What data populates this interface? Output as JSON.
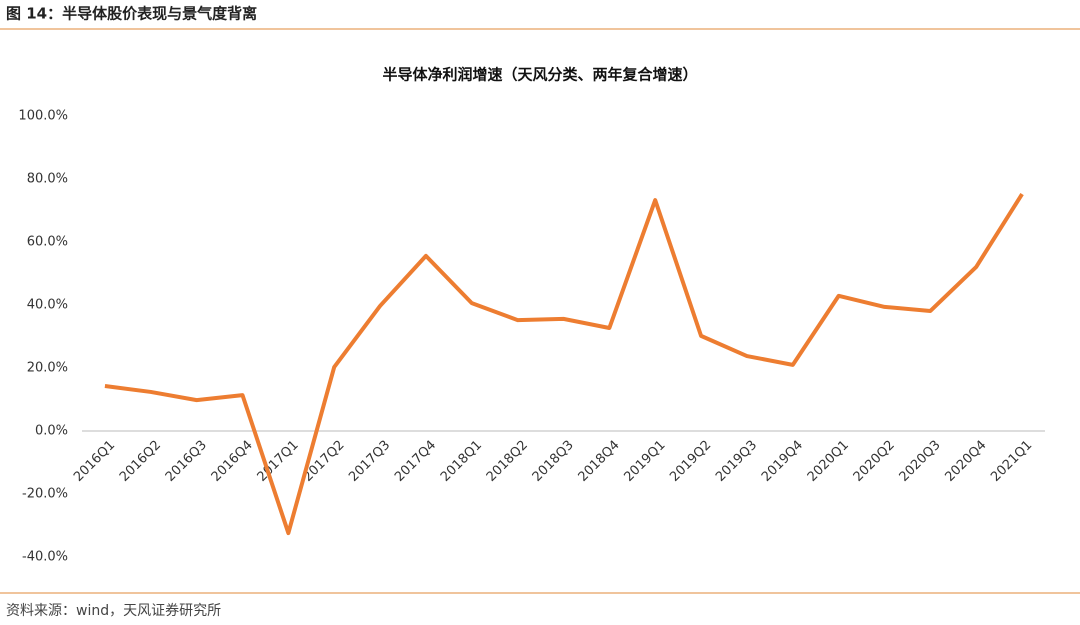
{
  "header": {
    "title": "图 14：半导体股价表现与景气度背离"
  },
  "chart_data": {
    "type": "line",
    "title": "半导体净利润增速（天风分类、两年复合增速）",
    "categories": [
      "2016Q1",
      "2016Q2",
      "2016Q3",
      "2016Q4",
      "2017Q1",
      "2017Q2",
      "2017Q3",
      "2017Q4",
      "2018Q1",
      "2018Q2",
      "2018Q3",
      "2018Q4",
      "2019Q1",
      "2019Q2",
      "2019Q3",
      "2019Q4",
      "2020Q1",
      "2020Q2",
      "2020Q3",
      "2020Q4",
      "2021Q1"
    ],
    "values": [
      14.3,
      12.4,
      9.8,
      11.4,
      -32.4,
      20.3,
      39.7,
      55.6,
      40.6,
      35.2,
      35.6,
      32.7,
      73.3,
      30.2,
      23.8,
      21.0,
      42.9,
      39.4,
      38.1,
      52.1,
      75.2
    ],
    "color": "#ed7d31",
    "ylim": [
      -40,
      100
    ],
    "yticks": [
      {
        "value": -40,
        "label": "-40.0%"
      },
      {
        "value": -20,
        "label": "-20.0%"
      },
      {
        "value": 0,
        "label": "0.0%"
      },
      {
        "value": 20,
        "label": "20.0%"
      },
      {
        "value": 40,
        "label": "40.0%"
      },
      {
        "value": 60,
        "label": "60.0%"
      },
      {
        "value": 80,
        "label": "80.0%"
      },
      {
        "value": 100,
        "label": "100.0%"
      }
    ],
    "grid": false
  },
  "footer": {
    "source": "资料来源：wind，天风证券研究所"
  }
}
